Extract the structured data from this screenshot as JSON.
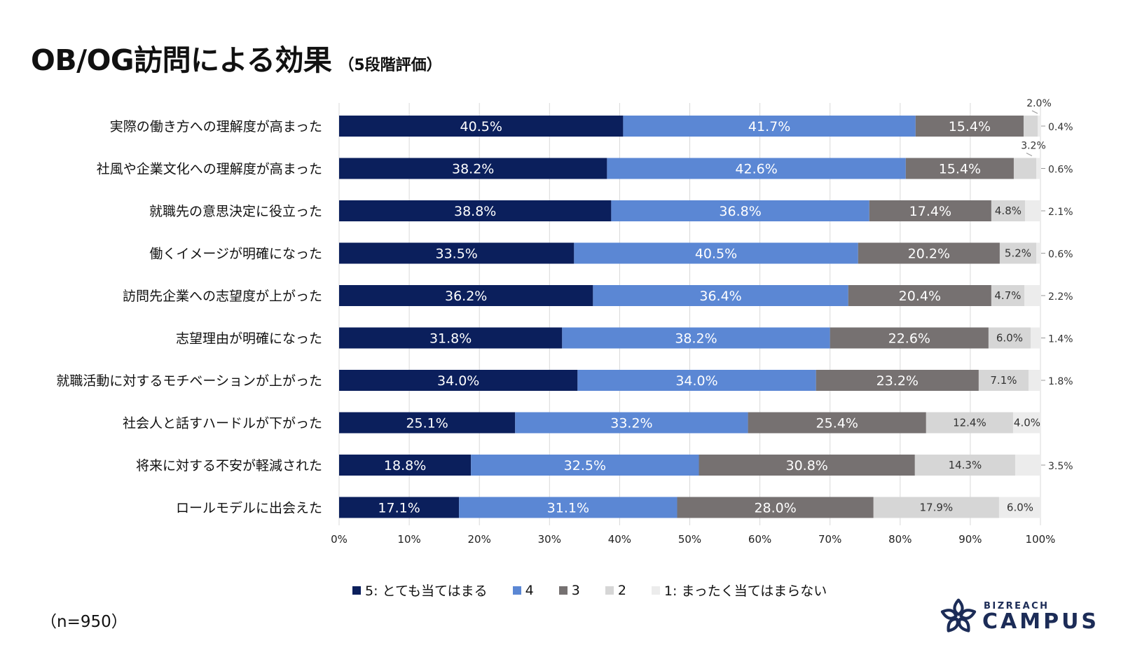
{
  "title": "OB/OG訪問による効果",
  "subtitle": "（5段階評価）",
  "sample_note": "（n=950）",
  "logo": {
    "top": "BIZREACH",
    "main": "CAMPUS"
  },
  "colors": {
    "s5": "#0b1f5c",
    "s4": "#5b87d4",
    "s3": "#767171",
    "s2": "#d6d6d6",
    "s1": "#ececec"
  },
  "legend": [
    {
      "label": "5: とても当てはまる",
      "color": "#0b1f5c"
    },
    {
      "label": "4",
      "color": "#5b87d4"
    },
    {
      "label": "3",
      "color": "#767171"
    },
    {
      "label": "2",
      "color": "#d6d6d6"
    },
    {
      "label": "1: まったく当てはまらない",
      "color": "#ececec"
    }
  ],
  "chart_data": {
    "type": "bar",
    "orientation": "horizontal",
    "stacked": true,
    "xlim": [
      0,
      100
    ],
    "xticks": [
      "0%",
      "10%",
      "20%",
      "30%",
      "40%",
      "50%",
      "60%",
      "70%",
      "80%",
      "90%",
      "100%"
    ],
    "categories": [
      "実際の働き方への理解度が高まった",
      "社風や企業文化への理解度が高まった",
      "就職先の意思決定に役立った",
      "働くイメージが明確になった",
      "訪問先企業への志望度が上がった",
      "志望理由が明確になった",
      "就職活動に対するモチベーションが上がった",
      "社会人と話すハードルが下がった",
      "将来に対する不安が軽減された",
      "ロールモデルに出会えた"
    ],
    "series": [
      {
        "name": "5: とても当てはまる",
        "values": [
          40.5,
          38.2,
          38.8,
          33.5,
          36.2,
          31.8,
          34.0,
          25.1,
          18.8,
          17.1
        ],
        "labels": [
          "40.5%",
          "38.2%",
          "38.8%",
          "33.5%",
          "36.2%",
          "31.8%",
          "34.0%",
          "25.1%",
          "18.8%",
          "17.1%"
        ]
      },
      {
        "name": "4",
        "values": [
          41.7,
          42.6,
          36.8,
          40.5,
          36.4,
          38.2,
          34.0,
          33.2,
          32.5,
          31.1
        ],
        "labels": [
          "41.7%",
          "42.6%",
          "36.8%",
          "40.5%",
          "36.4%",
          "38.2%",
          "34.0%",
          "33.2%",
          "32.5%",
          "31.1%"
        ]
      },
      {
        "name": "3",
        "values": [
          15.4,
          15.4,
          17.4,
          20.2,
          20.4,
          22.6,
          23.2,
          25.4,
          30.8,
          28.0
        ],
        "labels": [
          "15.4%",
          "15.4%",
          "17.4%",
          "20.2%",
          "20.4%",
          "22.6%",
          "23.2%",
          "25.4%",
          "30.8%",
          "28.0%"
        ]
      },
      {
        "name": "2",
        "values": [
          2.0,
          3.2,
          4.8,
          5.2,
          4.7,
          6.0,
          7.1,
          12.4,
          14.3,
          17.9
        ],
        "labels": [
          "2.0%",
          "3.2%",
          "4.8%",
          "5.2%",
          "4.7%",
          "6.0%",
          "7.1%",
          "12.4%",
          "14.3%",
          "17.9%"
        ]
      },
      {
        "name": "1: まったく当てはまらない",
        "values": [
          0.4,
          0.6,
          2.1,
          0.6,
          2.2,
          1.4,
          1.8,
          4.0,
          3.5,
          6.0
        ],
        "labels": [
          "0.4%",
          "0.6%",
          "2.1%",
          "0.6%",
          "2.2%",
          "1.4%",
          "1.8%",
          "4.0%",
          "3.5%",
          "6.0%"
        ]
      }
    ]
  }
}
